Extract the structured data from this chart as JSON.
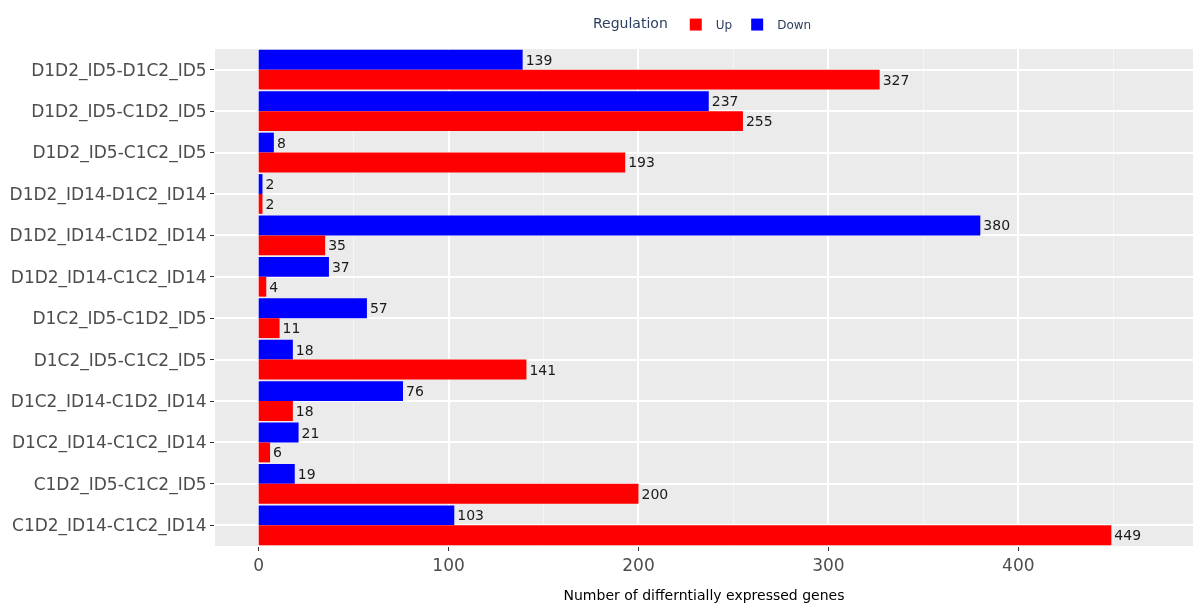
{
  "chart_data": {
    "type": "bar",
    "orientation": "horizontal",
    "categories": [
      "D1D2_ID5-D1C2_ID5",
      "D1D2_ID5-C1D2_ID5",
      "D1D2_ID5-C1C2_ID5",
      "D1D2_ID14-D1C2_ID14",
      "D1D2_ID14-C1D2_ID14",
      "D1D2_ID14-C1C2_ID14",
      "D1C2_ID5-C1D2_ID5",
      "D1C2_ID5-C1C2_ID5",
      "D1C2_ID14-C1D2_ID14",
      "D1C2_ID14-C1C2_ID14",
      "C1D2_ID5-C1C2_ID5",
      "C1D2_ID14-C1C2_ID14"
    ],
    "series": [
      {
        "name": "Up",
        "color": "#ff0000",
        "values": [
          327,
          255,
          193,
          2,
          35,
          4,
          11,
          141,
          18,
          6,
          200,
          449
        ]
      },
      {
        "name": "Down",
        "color": "#0000ff",
        "values": [
          139,
          237,
          8,
          2,
          380,
          37,
          57,
          18,
          76,
          21,
          19,
          103
        ]
      }
    ],
    "xlabel": "Number of differntially expressed genes",
    "legend_title": "Regulation",
    "xlim": [
      -23,
      492
    ],
    "xticks": [
      0,
      100,
      200,
      300,
      400
    ],
    "data_labels": true,
    "grid": true,
    "legend": "top"
  }
}
